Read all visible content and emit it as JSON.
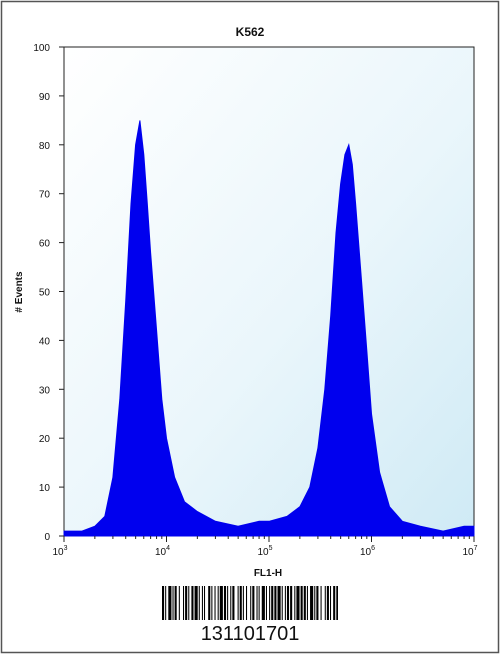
{
  "chart_data": {
    "type": "area",
    "title": "K562",
    "xlabel": "FL1-H",
    "ylabel": "# Events",
    "x_scale": "log",
    "xlim": [
      1000,
      10000000
    ],
    "ylim": [
      0,
      100
    ],
    "x_ticks": [
      {
        "base": "10",
        "exp": "3",
        "value": 1000
      },
      {
        "base": "10",
        "exp": "4",
        "value": 10000
      },
      {
        "base": "10",
        "exp": "5",
        "value": 100000
      },
      {
        "base": "10",
        "exp": "6",
        "value": 1000000
      },
      {
        "base": "10",
        "exp": "7",
        "value": 10000000
      }
    ],
    "y_ticks": [
      "0",
      "10",
      "20",
      "30",
      "40",
      "50",
      "60",
      "70",
      "80",
      "90",
      "100"
    ],
    "fill_color": "#0000ee",
    "series": [
      {
        "x": [
          1000,
          1500,
          2000,
          2500,
          3000,
          3500,
          4000,
          4500,
          5000,
          5500,
          6000,
          6500,
          7000,
          8000,
          9000,
          10000,
          12000,
          15000,
          20000,
          30000,
          50000,
          80000,
          100000,
          150000,
          200000,
          250000,
          300000,
          350000,
          400000,
          450000,
          500000,
          550000,
          600000,
          650000,
          700000,
          800000,
          900000,
          1000000,
          1200000,
          1500000,
          2000000,
          3000000,
          5000000,
          8000000,
          10000000
        ],
        "values": [
          1,
          1,
          2,
          4,
          12,
          28,
          48,
          68,
          80,
          85,
          78,
          68,
          58,
          42,
          28,
          20,
          12,
          7,
          5,
          3,
          2,
          3,
          3,
          4,
          6,
          10,
          18,
          30,
          45,
          62,
          72,
          78,
          80,
          76,
          68,
          52,
          38,
          25,
          13,
          6,
          3,
          2,
          1,
          2,
          2
        ]
      }
    ]
  },
  "barcode": {
    "number": "131101701"
  }
}
